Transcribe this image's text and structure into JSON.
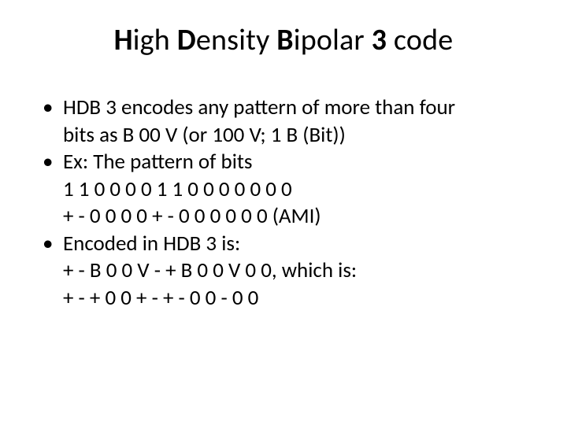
{
  "colors": {
    "background": "#ffffff",
    "text": "#000000"
  },
  "typography": {
    "title_fontsize": 38,
    "body_fontsize": 27,
    "font_family": "Calibri"
  },
  "title": {
    "h": "H",
    "igh": "igh ",
    "d": "D",
    "ensity": "ensity ",
    "b": "B",
    "ipolar": "ipolar ",
    "three": "3",
    "code": " code"
  },
  "body": {
    "b1a": "HDB 3 encodes any pattern of more than four",
    "b1b": "bits as B 00 V (or 100 V; 1 B (Bit))",
    "b2": " Ex: The pattern of bits",
    "l1": "1 1 0 0 0 0 1 1 0 0 0 0 0 0 0",
    "l2": "+ - 0 0 0 0  +  - 0 0 0 0 0 0 (AMI)",
    "b3": "Encoded in HDB 3 is:",
    "l3": "+ - B 0 0 V - + B 0 0 V 0 0, which is:",
    "l4": "+ - + 0 0 + - + - 0 0 - 0 0"
  }
}
